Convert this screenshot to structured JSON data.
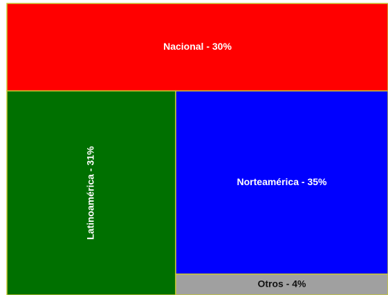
{
  "chart_data": {
    "type": "treemap",
    "value_labels": [
      "Nacional - 30%",
      "Latinoamérica - 31%",
      "Norteamérica - 35%",
      "Otros - 4%"
    ],
    "values": [
      30,
      31,
      35,
      4
    ],
    "colors": [
      "#ff0000",
      "#007000",
      "#0000ff",
      "#a0a0a0"
    ]
  }
}
